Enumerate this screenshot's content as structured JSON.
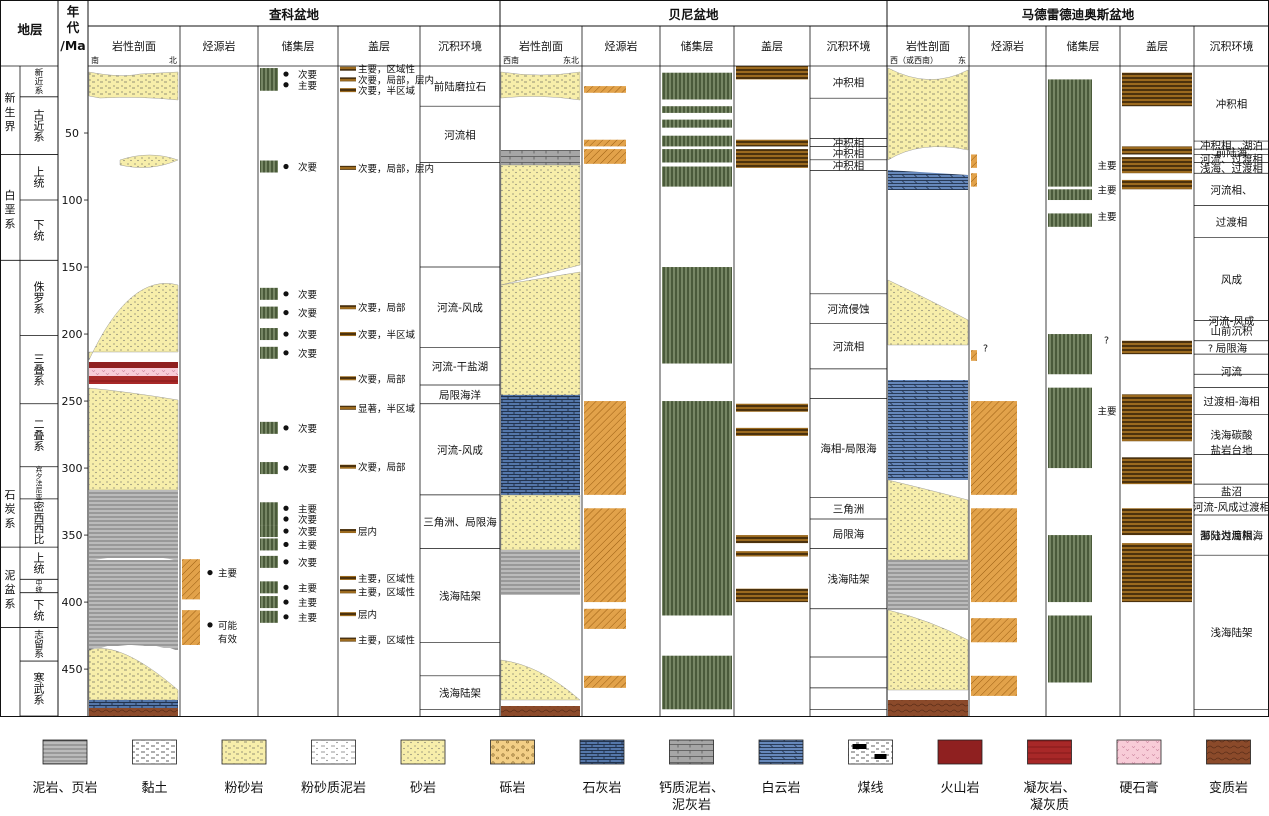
{
  "header": {
    "strata": "地层",
    "age_line1": "年",
    "age_line2": "代",
    "age_line3": "/Ma"
  },
  "basins": [
    {
      "name": "查科盆地",
      "cols": [
        "岩性剖面",
        "烃源岩",
        "储集层",
        "盖层",
        "沉积环境"
      ],
      "dir_left": "南",
      "dir_right": "北",
      "reservoir_labels": [
        {
          "t": "次要",
          "age": 6
        },
        {
          "t": "主要",
          "age": 14
        },
        {
          "t": "次要",
          "age": 75
        },
        {
          "t": "次要",
          "age": 170
        },
        {
          "t": "次要",
          "age": 184
        },
        {
          "t": "次要",
          "age": 200
        },
        {
          "t": "次要",
          "age": 214
        },
        {
          "t": "次要",
          "age": 270
        },
        {
          "t": "次要",
          "age": 300
        },
        {
          "t": "主要",
          "age": 330
        },
        {
          "t": "次要",
          "age": 338
        },
        {
          "t": "次要",
          "age": 347
        },
        {
          "t": "主要",
          "age": 357
        },
        {
          "t": "次要",
          "age": 370
        },
        {
          "t": "主要",
          "age": 389
        },
        {
          "t": "主要",
          "age": 400
        },
        {
          "t": "主要",
          "age": 411
        }
      ],
      "seal_labels": [
        {
          "t": "主要，区域性",
          "age": 2
        },
        {
          "t": "次要，局部，层内",
          "age": 10
        },
        {
          "t": "次要，半区域",
          "age": 18
        },
        {
          "t": "次要，局部，层内",
          "age": 76
        },
        {
          "t": "次要，局部",
          "age": 180
        },
        {
          "t": "次要，半区域",
          "age": 200
        },
        {
          "t": "次要，局部",
          "age": 233
        },
        {
          "t": "显著，半区域",
          "age": 255
        },
        {
          "t": "次要，局部",
          "age": 299
        },
        {
          "t": "层内",
          "age": 347
        },
        {
          "t": "主要，区域性",
          "age": 382
        },
        {
          "t": "主要，区域性",
          "age": 392
        },
        {
          "t": "层内",
          "age": 409
        },
        {
          "t": "主要，区域性",
          "age": 428
        }
      ],
      "source_labels": [
        {
          "t": "主要",
          "age": 378
        },
        {
          "t": "可能",
          "age": 417
        },
        {
          "t": "有效",
          "age": 427
        }
      ],
      "environments": [
        {
          "t": "前陆磨拉石",
          "from": 0,
          "to": 30
        },
        {
          "t": "河流相",
          "from": 30,
          "to": 72
        },
        {
          "t": "",
          "from": 72,
          "to": 150
        },
        {
          "t": "河流-风成",
          "from": 150,
          "to": 210
        },
        {
          "t": "河流-干盐湖",
          "from": 210,
          "to": 238
        },
        {
          "t": "局限海洋",
          "from": 238,
          "to": 252
        },
        {
          "t": "河流-风成",
          "from": 252,
          "to": 320
        },
        {
          "t": "三角洲、局限海",
          "from": 320,
          "to": 360
        },
        {
          "t": "浅海陆架",
          "from": 360,
          "to": 430
        },
        {
          "t": "",
          "from": 430,
          "to": 455
        },
        {
          "t": "浅海陆架",
          "from": 455,
          "to": 480
        }
      ]
    },
    {
      "name": "贝尼盆地",
      "cols": [
        "岩性剖面",
        "烃源岩",
        "储集层",
        "盖层",
        "沉积环境"
      ],
      "dir_left": "西南",
      "dir_right": "东北",
      "environments": [
        {
          "t": "冲积相",
          "from": 0,
          "to": 24
        },
        {
          "t": "",
          "from": 24,
          "to": 54
        },
        {
          "t": "冲积相",
          "from": 54,
          "to": 60
        },
        {
          "t": "冲积相",
          "from": 60,
          "to": 70
        },
        {
          "t": "冲积相",
          "from": 70,
          "to": 78
        },
        {
          "t": "",
          "from": 78,
          "to": 170
        },
        {
          "t": "河流侵蚀",
          "from": 170,
          "to": 192
        },
        {
          "t": "河流相",
          "from": 192,
          "to": 226
        },
        {
          "t": "",
          "from": 226,
          "to": 248
        },
        {
          "t": "海相-局限海",
          "from": 248,
          "to": 322
        },
        {
          "t": "三角洲",
          "from": 322,
          "to": 338
        },
        {
          "t": "局限海",
          "from": 338,
          "to": 360
        },
        {
          "t": "浅海陆架",
          "from": 360,
          "to": 405
        },
        {
          "t": "",
          "from": 405,
          "to": 441
        },
        {
          "t": "",
          "from": 441,
          "to": 464
        },
        {
          "t": "",
          "from": 464,
          "to": 480
        }
      ]
    },
    {
      "name": "马德雷德迪奥斯盆地",
      "cols": [
        "岩性剖面",
        "烃源岩",
        "储集层",
        "盖层",
        "沉积环境"
      ],
      "dir_left": "西（或西南）",
      "dir_right": "东",
      "reservoir_labels": [
        {
          "t": "主要",
          "age": 74
        },
        {
          "t": "主要",
          "age": 92
        },
        {
          "t": "主要",
          "age": 112
        },
        {
          "t": "主要",
          "age": 257
        }
      ],
      "question_marks": [
        "?",
        "?",
        "?"
      ],
      "environments": [
        {
          "t": "冲积相",
          "from": 0,
          "to": 56
        },
        {
          "t": "冲积相、湖泊",
          "from": 56,
          "to": 62
        },
        {
          "t": "前陆海",
          "from": 62,
          "to": 66
        },
        {
          "t": "河流、过渡相",
          "from": 66,
          "to": 72
        },
        {
          "t": "浅海、过渡相",
          "from": 72,
          "to": 80
        },
        {
          "t": "河流相、",
          "from": 80,
          "to": 104
        },
        {
          "t": "过渡相",
          "from": 104,
          "to": 128
        },
        {
          "t": "风成",
          "from": 128,
          "to": 190
        },
        {
          "t": "山前沉积",
          "from": 190,
          "to": 205
        },
        {
          "t": "河流-风成",
          "from": 150,
          "to": 230
        },
        {
          "t": "局限海",
          "from": 205,
          "to": 215
        },
        {
          "t": "河流",
          "from": 215,
          "to": 240
        },
        {
          "t": "过渡相-海相",
          "from": 240,
          "to": 260
        },
        {
          "t": "浅海碳酸",
          "from": 260,
          "to": 290
        },
        {
          "t": "盐岩台地",
          "from": 260,
          "to": 312
        },
        {
          "t": "盐沼",
          "from": 312,
          "to": 322
        },
        {
          "t": "河流-风成过渡相",
          "from": 322,
          "to": 335
        },
        {
          "t": "海陆过渡相，",
          "from": 335,
          "to": 365
        },
        {
          "t": "部分为局限海",
          "from": 335,
          "to": 365
        },
        {
          "t": "浅海陆架",
          "from": 365,
          "to": 480
        }
      ]
    }
  ],
  "strata": [
    {
      "system": "新近系",
      "era": "",
      "from": 0,
      "to": 23
    },
    {
      "system": "古近系",
      "era": "",
      "from": 23,
      "to": 66
    },
    {
      "system": "上统",
      "era": "",
      "from": 66,
      "to": 100
    },
    {
      "system": "下统",
      "era": "",
      "from": 100,
      "to": 145
    },
    {
      "system": "侏罗系",
      "era": "",
      "from": 145,
      "to": 201
    },
    {
      "system": "三叠系",
      "era": "",
      "from": 201,
      "to": 252
    },
    {
      "system": "二叠系",
      "era": "",
      "from": 252,
      "to": 299
    },
    {
      "system": "宾夕法尼亚",
      "era": "",
      "from": 299,
      "to": 323
    },
    {
      "system": "密西西比",
      "era": "",
      "from": 323,
      "to": 359
    },
    {
      "system": "上统",
      "era": "",
      "from": 359,
      "to": 383
    },
    {
      "system": "中统",
      "era": "",
      "from": 383,
      "to": 393
    },
    {
      "system": "下统",
      "era": "",
      "from": 393,
      "to": 419
    },
    {
      "system": "志留系",
      "era": "",
      "from": 419,
      "to": 444
    },
    {
      "system": "寒武系",
      "era": "",
      "from": 444,
      "to": 485
    }
  ],
  "big_strata": [
    {
      "name": "新生界",
      "from": 0,
      "to": 66
    },
    {
      "name": "白垩系",
      "from": 66,
      "to": 145
    },
    {
      "name": "石炭系",
      "from": 299,
      "to": 359
    },
    {
      "name": "泥盆系",
      "from": 359,
      "to": 419
    }
  ],
  "age_ticks": [
    50,
    100,
    150,
    200,
    250,
    300,
    350,
    400,
    450
  ],
  "legend": [
    {
      "key": "mudstone",
      "line1": "泥岩、页岩",
      "line2": ""
    },
    {
      "key": "clay",
      "line1": "黏土",
      "line2": ""
    },
    {
      "key": "siltstone",
      "line1": "粉砂岩",
      "line2": ""
    },
    {
      "key": "silty_mud",
      "line1": "粉砂质泥岩",
      "line2": ""
    },
    {
      "key": "sandstone",
      "line1": "砂岩",
      "line2": ""
    },
    {
      "key": "conglomerate",
      "line1": "砾岩",
      "line2": ""
    },
    {
      "key": "limestone",
      "line1": "石灰岩",
      "line2": ""
    },
    {
      "key": "marl",
      "line1": "钙质泥岩、",
      "line2": "泥灰岩"
    },
    {
      "key": "dolomite",
      "line1": "白云岩",
      "line2": ""
    },
    {
      "key": "coal",
      "line1": "煤线",
      "line2": ""
    },
    {
      "key": "volcanic",
      "line1": "火山岩",
      "line2": ""
    },
    {
      "key": "tuff",
      "line1": "凝灰岩、",
      "line2": "凝灰质"
    },
    {
      "key": "gypsum",
      "line1": "硬石膏",
      "line2": ""
    },
    {
      "key": "metamorphic",
      "line1": "变质岩",
      "line2": ""
    }
  ],
  "colors": {
    "sand": "#f7eeaa",
    "source": "#e2a24a",
    "reservoir": "#4a5a3a",
    "seal": "#9b6a1f",
    "limestone": "#5577aa",
    "marl": "#999999",
    "volcanic": "#8f2020",
    "gypsum": "#f6c6d6",
    "metamorphic": "#8b4a2a"
  }
}
